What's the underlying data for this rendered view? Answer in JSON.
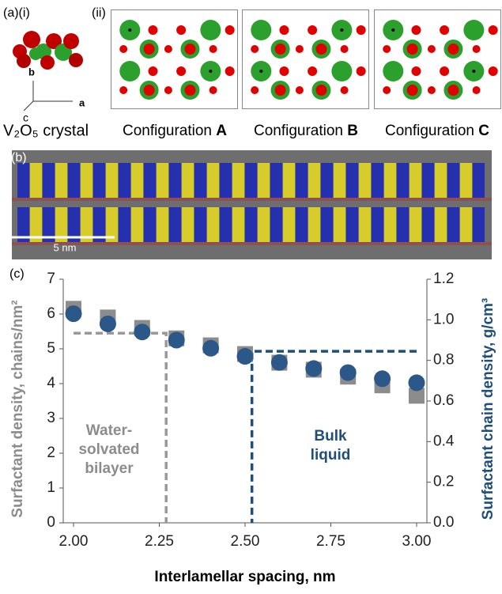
{
  "panel_a": {
    "label": "(a)(i)",
    "label_ii": "(ii)",
    "axes": [
      "b",
      "a",
      "c"
    ],
    "crystal": "V₂O₅ crystal",
    "configurations": [
      {
        "prefix": "Configuration",
        "letter": "A"
      },
      {
        "prefix": "Configuration",
        "letter": "B"
      },
      {
        "prefix": "Configuration",
        "letter": "C"
      }
    ]
  },
  "panel_b": {
    "label": "(b)",
    "scale_bar": "5 nm"
  },
  "chart_data": {
    "type": "scatter",
    "panel_label": "(c)",
    "xlabel": "Interlamellar spacing, nm",
    "ylabel": "Surfactant density, chains/nm²",
    "y2label": "Surfactant chain density, g/cm³",
    "x": [
      2.0,
      2.1,
      2.2,
      2.3,
      2.4,
      2.5,
      2.6,
      2.7,
      2.8,
      2.9,
      3.0
    ],
    "series": [
      {
        "color": "#8c8c8c",
        "marker": "square",
        "values": [
          6.15,
          5.9,
          5.6,
          5.3,
          5.1,
          4.85,
          4.6,
          4.4,
          4.2,
          3.95,
          3.65
        ]
      },
      {
        "color": "#2b5888",
        "marker": "circle",
        "axis": "y2",
        "values": [
          1.03,
          0.98,
          0.94,
          0.9,
          0.86,
          0.82,
          0.79,
          0.76,
          0.74,
          0.71,
          0.69
        ]
      }
    ],
    "xlim": [
      1.97,
      3.03
    ],
    "xticks": [
      {
        "value": 2.0,
        "label": "2.00"
      },
      {
        "value": 2.25,
        "label": "2.25"
      },
      {
        "value": 2.5,
        "label": "2.50"
      },
      {
        "value": 2.75,
        "label": "2.75"
      },
      {
        "value": 3.0,
        "label": "3.00"
      }
    ],
    "ylim": [
      0,
      7
    ],
    "yticks": [
      0,
      1,
      2,
      3,
      4,
      5,
      6,
      7
    ],
    "y2lim": [
      0,
      1.2
    ],
    "y2ticks": [
      {
        "value": 0,
        "label": "0.0"
      },
      0.2,
      0.4,
      0.6,
      0.8,
      {
        "value": 1,
        "label": "1.0"
      },
      1.2
    ],
    "reference_lines": [
      {
        "color": "#999999",
        "x": [
          2.0,
          2.27,
          2.27
        ],
        "y": [
          5.45,
          5.45,
          0
        ]
      },
      {
        "color": "#1f4e79",
        "axis": "y2",
        "x": [
          3.0,
          2.52,
          2.52
        ],
        "y": [
          0.845,
          0.845,
          0
        ]
      }
    ],
    "annotations": [
      {
        "color": "#8c8c8c",
        "lines": [
          "Water-",
          "solvated",
          "bilayer"
        ]
      },
      {
        "color": "#1f4e79",
        "lines": [
          "Bulk",
          "liquid"
        ]
      }
    ]
  }
}
